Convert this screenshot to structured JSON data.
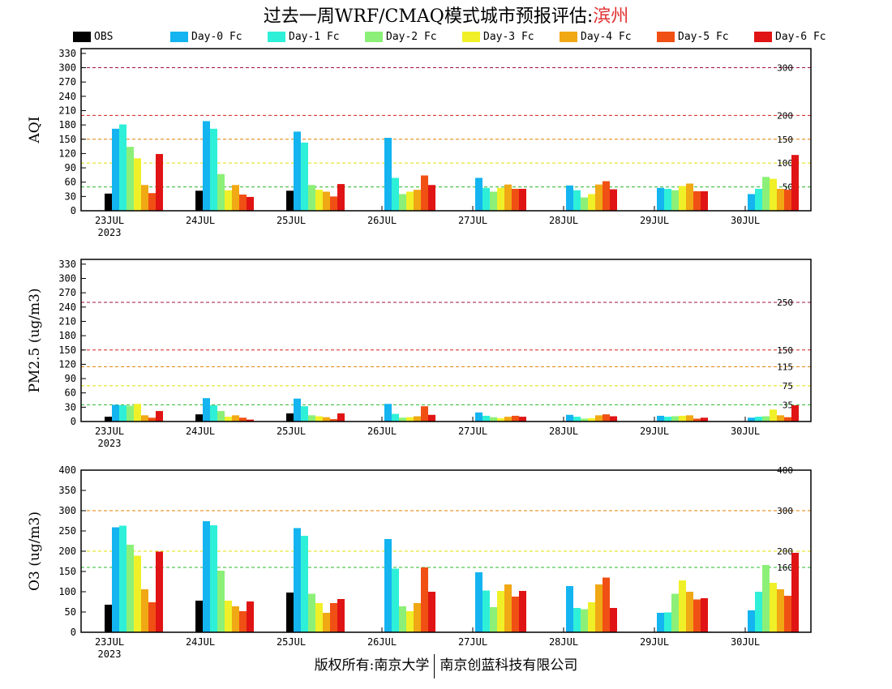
{
  "title": {
    "prefix": "过去一周WRF/CMAQ模式城市预报评估:",
    "city": "滨州"
  },
  "footer": {
    "left": "版权所有:南京大学",
    "right": "南京创蓝科技有限公司"
  },
  "legend": [
    {
      "label": "OBS",
      "color": "#000000"
    },
    {
      "label": "Day-0 Fc",
      "color": "#14b4f0"
    },
    {
      "label": "Day-1 Fc",
      "color": "#2ef0d8"
    },
    {
      "label": "Day-2 Fc",
      "color": "#8cf078"
    },
    {
      "label": "Day-3 Fc",
      "color": "#f0f028"
    },
    {
      "label": "Day-4 Fc",
      "color": "#f0a814"
    },
    {
      "label": "Day-5 Fc",
      "color": "#f05014"
    },
    {
      "label": "Day-6 Fc",
      "color": "#e01414"
    }
  ],
  "chart_data": [
    {
      "type": "bar",
      "ylabel": "AQI",
      "categories": [
        "23JUL",
        "24JUL",
        "25JUL",
        "26JUL",
        "27JUL",
        "28JUL",
        "29JUL",
        "30JUL"
      ],
      "first_category_sublabel": "2023",
      "ylim": [
        0,
        340
      ],
      "yticks": [
        0,
        30,
        60,
        90,
        120,
        150,
        180,
        210,
        240,
        270,
        300,
        330
      ],
      "reference_lines": [
        {
          "value": 50,
          "label": "50",
          "color": "#2cb82c"
        },
        {
          "value": 100,
          "label": "100",
          "color": "#e0e000"
        },
        {
          "value": 150,
          "label": "150",
          "color": "#e08000"
        },
        {
          "value": 200,
          "label": "200",
          "color": "#d82020"
        },
        {
          "value": 300,
          "label": "300",
          "color": "#a01040"
        }
      ],
      "series": [
        {
          "name": "OBS",
          "values": [
            36,
            42,
            42,
            null,
            null,
            null,
            null,
            null
          ]
        },
        {
          "name": "Day-0 Fc",
          "values": [
            172,
            188,
            166,
            153,
            69,
            53,
            48,
            35
          ]
        },
        {
          "name": "Day-1 Fc",
          "values": [
            181,
            172,
            143,
            69,
            48,
            43,
            46,
            46
          ]
        },
        {
          "name": "Day-2 Fc",
          "values": [
            134,
            77,
            54,
            35,
            40,
            28,
            43,
            71
          ]
        },
        {
          "name": "Day-3 Fc",
          "values": [
            110,
            43,
            44,
            40,
            48,
            35,
            52,
            67
          ]
        },
        {
          "name": "Day-4 Fc",
          "values": [
            54,
            54,
            40,
            44,
            55,
            55,
            57,
            46
          ]
        },
        {
          "name": "Day-5 Fc",
          "values": [
            37,
            34,
            30,
            74,
            46,
            62,
            41,
            44
          ]
        },
        {
          "name": "Day-6 Fc",
          "values": [
            119,
            29,
            56,
            54,
            46,
            45,
            41,
            117
          ]
        }
      ]
    },
    {
      "type": "bar",
      "ylabel": "PM2.5 (ug/m3)",
      "categories": [
        "23JUL",
        "24JUL",
        "25JUL",
        "26JUL",
        "27JUL",
        "28JUL",
        "29JUL",
        "30JUL"
      ],
      "first_category_sublabel": "2023",
      "ylim": [
        0,
        340
      ],
      "yticks": [
        0,
        30,
        60,
        90,
        120,
        150,
        180,
        210,
        240,
        270,
        300,
        330
      ],
      "reference_lines": [
        {
          "value": 35,
          "label": "35",
          "color": "#2cb82c"
        },
        {
          "value": 75,
          "label": "75",
          "color": "#e0e000"
        },
        {
          "value": 115,
          "label": "115",
          "color": "#e08000"
        },
        {
          "value": 150,
          "label": "150",
          "color": "#d82020"
        },
        {
          "value": 250,
          "label": "250",
          "color": "#a01040"
        }
      ],
      "series": [
        {
          "name": "OBS",
          "values": [
            10,
            15,
            17,
            null,
            null,
            null,
            null,
            null
          ]
        },
        {
          "name": "Day-0 Fc",
          "values": [
            35,
            49,
            48,
            37,
            19,
            14,
            12,
            8
          ]
        },
        {
          "name": "Day-1 Fc",
          "values": [
            34,
            34,
            32,
            16,
            12,
            10,
            10,
            10
          ]
        },
        {
          "name": "Day-2 Fc",
          "values": [
            33,
            22,
            13,
            8,
            9,
            6,
            11,
            11
          ]
        },
        {
          "name": "Day-3 Fc",
          "values": [
            37,
            10,
            11,
            9,
            7,
            7,
            12,
            25
          ]
        },
        {
          "name": "Day-4 Fc",
          "values": [
            13,
            13,
            9,
            11,
            10,
            13,
            13,
            13
          ]
        },
        {
          "name": "Day-5 Fc",
          "values": [
            8,
            8,
            5,
            32,
            12,
            15,
            6,
            9
          ]
        },
        {
          "name": "Day-6 Fc",
          "values": [
            22,
            4,
            17,
            14,
            10,
            11,
            8,
            34
          ]
        }
      ]
    },
    {
      "type": "bar",
      "ylabel": "O3 (ug/m3)",
      "categories": [
        "23JUL",
        "24JUL",
        "25JUL",
        "26JUL",
        "27JUL",
        "28JUL",
        "29JUL",
        "30JUL"
      ],
      "first_category_sublabel": "2023",
      "ylim": [
        0,
        400
      ],
      "yticks": [
        0,
        50,
        100,
        150,
        200,
        250,
        300,
        350,
        400
      ],
      "reference_lines": [
        {
          "value": 160,
          "label": "160",
          "color": "#2cb82c"
        },
        {
          "value": 200,
          "label": "200",
          "color": "#e0e000"
        },
        {
          "value": 300,
          "label": "300",
          "color": "#e08000"
        },
        {
          "value": 400,
          "label": "400",
          "color": "#d82020"
        }
      ],
      "series": [
        {
          "name": "OBS",
          "values": [
            68,
            78,
            98,
            null,
            null,
            null,
            null,
            null
          ]
        },
        {
          "name": "Day-0 Fc",
          "values": [
            259,
            274,
            257,
            230,
            148,
            114,
            48,
            54
          ]
        },
        {
          "name": "Day-1 Fc",
          "values": [
            263,
            264,
            238,
            157,
            103,
            60,
            49,
            100
          ]
        },
        {
          "name": "Day-2 Fc",
          "values": [
            216,
            152,
            95,
            64,
            62,
            57,
            95,
            166
          ]
        },
        {
          "name": "Day-3 Fc",
          "values": [
            189,
            78,
            72,
            52,
            102,
            74,
            128,
            122
          ]
        },
        {
          "name": "Day-4 Fc",
          "values": [
            106,
            64,
            48,
            72,
            118,
            118,
            100,
            106
          ]
        },
        {
          "name": "Day-5 Fc",
          "values": [
            74,
            52,
            72,
            160,
            88,
            135,
            81,
            90
          ]
        },
        {
          "name": "Day-6 Fc",
          "values": [
            199,
            76,
            82,
            100,
            102,
            60,
            84,
            196
          ]
        }
      ]
    }
  ]
}
